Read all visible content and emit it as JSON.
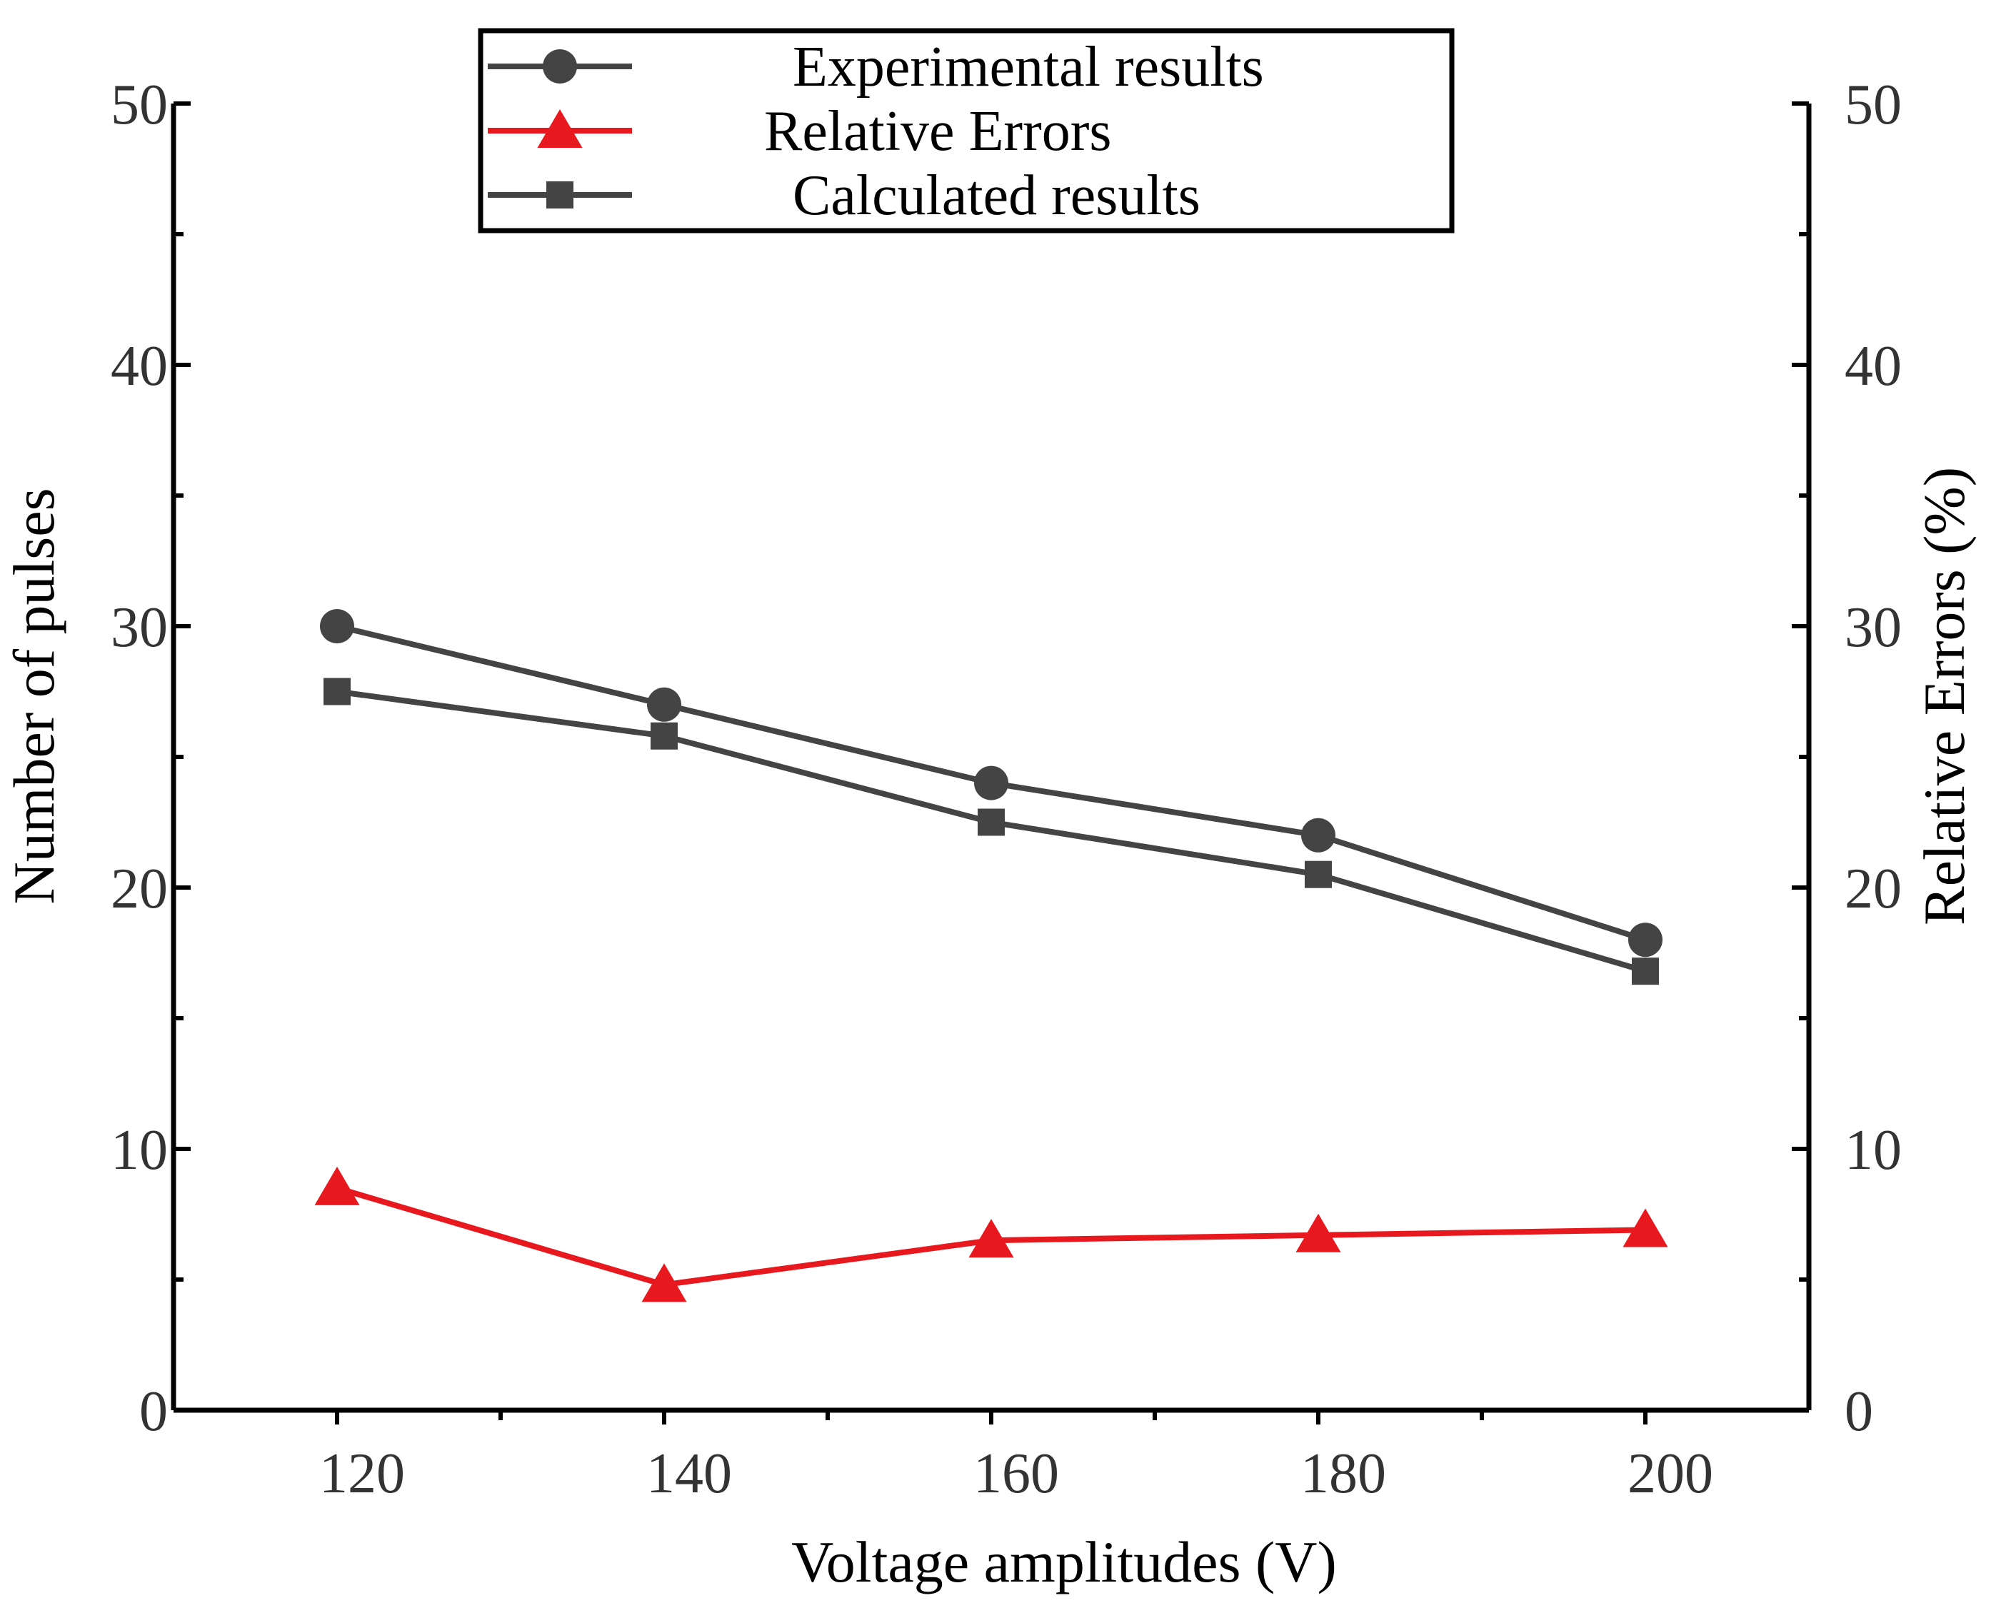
{
  "chart_data": {
    "type": "line",
    "x": [
      120,
      140,
      160,
      180,
      200
    ],
    "xlabel": "Voltage amplitudes (V)",
    "ylabel": "Number of pulses",
    "y2label": "Relative Errors (%)",
    "xlim": [
      110,
      210
    ],
    "ylim": [
      0,
      50
    ],
    "y2lim": [
      0,
      50
    ],
    "x_ticks": [
      120,
      140,
      160,
      180,
      200
    ],
    "y_ticks": [
      0,
      10,
      20,
      30,
      40,
      50
    ],
    "y2_ticks": [
      0,
      10,
      20,
      30,
      40,
      50
    ],
    "grid": false,
    "legend_position": "top-center",
    "series": [
      {
        "name": "Experimental results",
        "axis": "left",
        "marker": "circle",
        "color": "#444444",
        "values": [
          30,
          27,
          24,
          22,
          18
        ]
      },
      {
        "name": "Relative Errors",
        "axis": "right",
        "marker": "triangle",
        "color": "#e8191e",
        "values": [
          8.5,
          4.8,
          6.5,
          6.7,
          6.9
        ]
      },
      {
        "name": "Calculated results",
        "axis": "left",
        "marker": "square",
        "color": "#444444",
        "values": [
          27.5,
          25.8,
          22.5,
          20.5,
          16.8
        ]
      }
    ]
  }
}
